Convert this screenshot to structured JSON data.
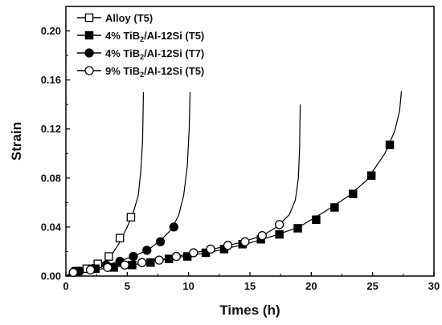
{
  "chart_data": {
    "type": "line",
    "xlabel": "Times (h)",
    "ylabel": "Strain",
    "xlim": [
      0,
      30
    ],
    "ylim": [
      0,
      0.22
    ],
    "x_ticks": [
      0,
      5,
      10,
      15,
      20,
      25,
      30
    ],
    "y_ticks": [
      0.0,
      0.04,
      0.08,
      0.12,
      0.16,
      0.2
    ],
    "x_tick_labels": [
      "0",
      "5",
      "10",
      "15",
      "20",
      "25",
      "30"
    ],
    "y_tick_labels": [
      "0.00",
      "0.04",
      "0.08",
      "0.12",
      "0.16",
      "0.20"
    ],
    "grid": false,
    "legend_position": "top-left",
    "series": [
      {
        "name": "Alloy (T5)",
        "name_parts": [
          "Alloy (T5)"
        ],
        "marker": "open-square",
        "points": [
          [
            0.8,
            0.004
          ],
          [
            1.7,
            0.006
          ],
          [
            2.6,
            0.01
          ],
          [
            3.5,
            0.016
          ],
          [
            4.4,
            0.031
          ],
          [
            5.3,
            0.048
          ]
        ],
        "curve": [
          [
            0.0,
            0.0
          ],
          [
            0.5,
            0.003
          ],
          [
            1.5,
            0.005
          ],
          [
            2.5,
            0.008
          ],
          [
            3.5,
            0.014
          ],
          [
            4.3,
            0.026
          ],
          [
            5.0,
            0.04
          ],
          [
            5.5,
            0.052
          ],
          [
            5.9,
            0.066
          ],
          [
            6.1,
            0.085
          ],
          [
            6.25,
            0.11
          ],
          [
            6.32,
            0.15
          ]
        ]
      },
      {
        "name": "4% TiB2/Al-12Si (T5)",
        "name_parts": [
          "4% TiB",
          "2",
          "/Al-12Si (T5)"
        ],
        "marker": "filled-square",
        "points": [
          [
            1.0,
            0.004
          ],
          [
            2.4,
            0.006
          ],
          [
            3.9,
            0.007
          ],
          [
            5.4,
            0.009
          ],
          [
            6.9,
            0.011
          ],
          [
            8.4,
            0.014
          ],
          [
            9.9,
            0.016
          ],
          [
            11.4,
            0.019
          ],
          [
            12.9,
            0.022
          ],
          [
            14.4,
            0.026
          ],
          [
            15.9,
            0.03
          ],
          [
            17.4,
            0.034
          ],
          [
            18.9,
            0.039
          ],
          [
            20.4,
            0.046
          ],
          [
            21.9,
            0.056
          ],
          [
            23.4,
            0.067
          ],
          [
            24.9,
            0.082
          ],
          [
            26.4,
            0.107
          ]
        ],
        "curve": [
          [
            0.0,
            0.0
          ],
          [
            1.0,
            0.004
          ],
          [
            3.0,
            0.006
          ],
          [
            6.0,
            0.01
          ],
          [
            9.0,
            0.015
          ],
          [
            12.0,
            0.02
          ],
          [
            15.0,
            0.027
          ],
          [
            17.0,
            0.033
          ],
          [
            19.0,
            0.04
          ],
          [
            21.0,
            0.052
          ],
          [
            23.0,
            0.065
          ],
          [
            24.5,
            0.078
          ],
          [
            26.0,
            0.1
          ],
          [
            26.8,
            0.118
          ],
          [
            27.2,
            0.135
          ],
          [
            27.35,
            0.151
          ]
        ]
      },
      {
        "name": "4% TiB2/Al-12Si (T7)",
        "name_parts": [
          "4% TiB",
          "2",
          "/Al-12Si (T7)"
        ],
        "marker": "filled-circle",
        "points": [
          [
            1.1,
            0.004
          ],
          [
            2.2,
            0.006
          ],
          [
            3.3,
            0.009
          ],
          [
            4.4,
            0.012
          ],
          [
            5.5,
            0.016
          ],
          [
            6.6,
            0.021
          ],
          [
            7.7,
            0.028
          ],
          [
            8.8,
            0.04
          ]
        ],
        "curve": [
          [
            0.0,
            0.0
          ],
          [
            1.0,
            0.004
          ],
          [
            2.5,
            0.007
          ],
          [
            4.0,
            0.011
          ],
          [
            5.5,
            0.016
          ],
          [
            6.8,
            0.022
          ],
          [
            7.8,
            0.03
          ],
          [
            8.6,
            0.038
          ],
          [
            9.2,
            0.05
          ],
          [
            9.6,
            0.066
          ],
          [
            9.9,
            0.09
          ],
          [
            10.05,
            0.12
          ],
          [
            10.12,
            0.15
          ]
        ]
      },
      {
        "name": "9% TiB2/Al-12Si (T5)",
        "name_parts": [
          "9% TiB",
          "2",
          "/Al-12Si (T5)"
        ],
        "marker": "open-circle",
        "points": [
          [
            0.6,
            0.003
          ],
          [
            2.0,
            0.005
          ],
          [
            3.4,
            0.007
          ],
          [
            4.8,
            0.009
          ],
          [
            6.2,
            0.011
          ],
          [
            7.6,
            0.013
          ],
          [
            9.0,
            0.016
          ],
          [
            10.4,
            0.019
          ],
          [
            11.8,
            0.022
          ],
          [
            13.2,
            0.025
          ],
          [
            14.6,
            0.028
          ],
          [
            16.0,
            0.033
          ],
          [
            17.4,
            0.042
          ]
        ],
        "curve": [
          [
            0.0,
            0.0
          ],
          [
            1.0,
            0.003
          ],
          [
            3.0,
            0.006
          ],
          [
            6.0,
            0.01
          ],
          [
            9.0,
            0.016
          ],
          [
            12.0,
            0.022
          ],
          [
            14.5,
            0.028
          ],
          [
            16.0,
            0.033
          ],
          [
            17.2,
            0.04
          ],
          [
            18.2,
            0.05
          ],
          [
            18.7,
            0.062
          ],
          [
            18.95,
            0.08
          ],
          [
            19.05,
            0.105
          ],
          [
            19.1,
            0.14
          ]
        ]
      }
    ]
  }
}
